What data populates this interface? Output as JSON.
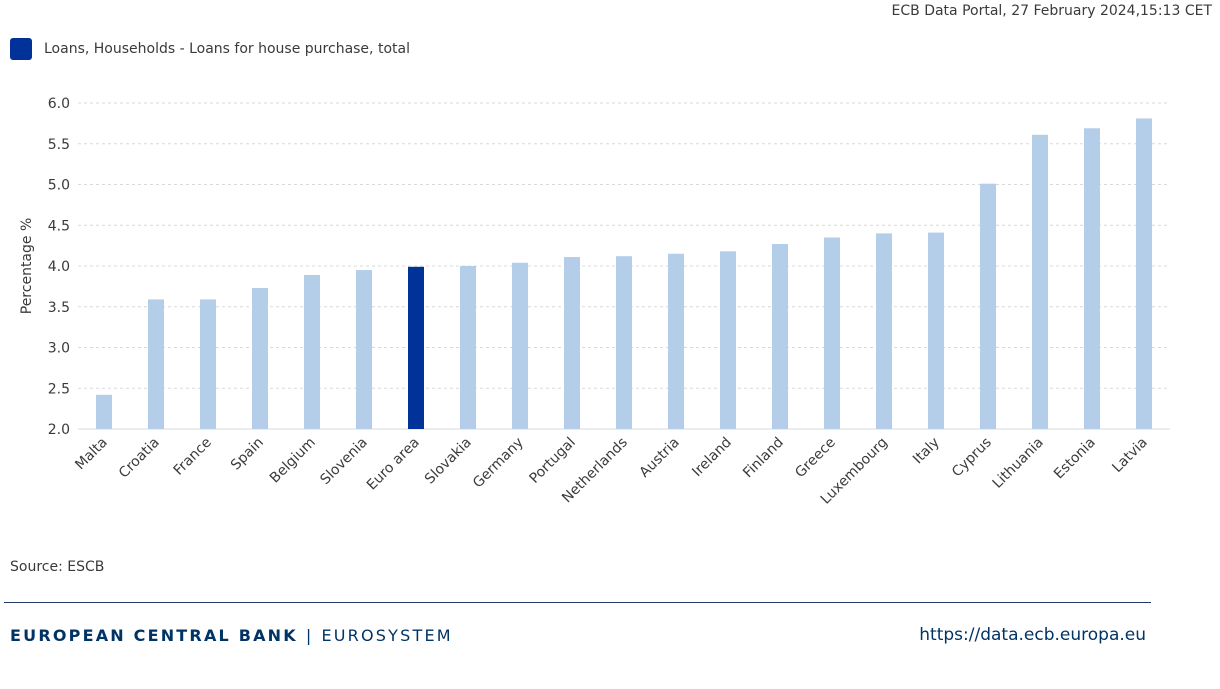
{
  "header": {
    "timestamp": "ECB Data Portal, 27 February 2024,15:13 CET"
  },
  "legend": {
    "label": "Loans, Households - Loans for house purchase, total"
  },
  "colors": {
    "highlight": "#003299",
    "bar": "#b4cde8",
    "grid": "#d9d9d9",
    "text": "#3a3a3a"
  },
  "chart_data": {
    "type": "bar",
    "ylabel": "Percentage %",
    "xlabel": "",
    "ylim": [
      2.0,
      6.0
    ],
    "yticks": [
      "2.0",
      "2.5",
      "3.0",
      "3.5",
      "4.0",
      "4.5",
      "5.0",
      "5.5",
      "6.0"
    ],
    "grid": true,
    "legend_position": "top-left",
    "categories": [
      "Malta",
      "Croatia",
      "France",
      "Spain",
      "Belgium",
      "Slovenia",
      "Euro area",
      "Slovakia",
      "Germany",
      "Portugal",
      "Netherlands",
      "Austria",
      "Ireland",
      "Finland",
      "Greece",
      "Luxembourg",
      "Italy",
      "Cyprus",
      "Lithuania",
      "Estonia",
      "Latvia"
    ],
    "series": [
      {
        "name": "Loans, Households - Loans for house purchase, total",
        "values": [
          2.42,
          3.59,
          3.59,
          3.73,
          3.89,
          3.95,
          3.99,
          4.0,
          4.04,
          4.11,
          4.12,
          4.15,
          4.18,
          4.27,
          4.35,
          4.4,
          4.41,
          5.01,
          5.61,
          5.69,
          5.81
        ]
      }
    ],
    "highlight_category": "Euro area"
  },
  "footer": {
    "source": "Source: ESCB",
    "brand_main": "EUROPEAN CENTRAL BANK",
    "brand_sep": "|",
    "brand_sub": "EUROSYSTEM",
    "url": "https://data.ecb.europa.eu"
  }
}
